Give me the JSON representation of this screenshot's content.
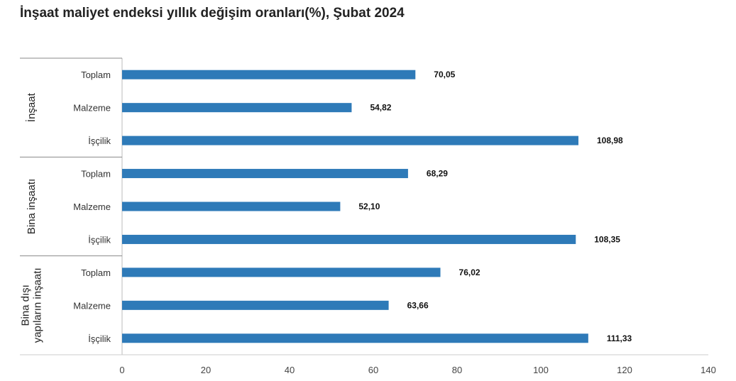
{
  "chart_data": {
    "type": "bar",
    "orientation": "horizontal",
    "title": "İnşaat maliyet endeksi yıllık değişim oranları(%), Şubat 2024",
    "xlim": [
      0,
      140
    ],
    "xticks": [
      "0",
      "20",
      "40",
      "60",
      "80",
      "100",
      "120",
      "140"
    ],
    "grid": false,
    "bar_color": "#2e7ab8",
    "groups": [
      {
        "name_lines": [
          "İnşaat"
        ],
        "categories": [
          "Toplam",
          "Malzeme",
          "İşçilik"
        ],
        "values": [
          70.05,
          54.82,
          108.98
        ],
        "labels": [
          "70,05",
          "54,82",
          "108,98"
        ]
      },
      {
        "name_lines": [
          "Bina inşaatı"
        ],
        "categories": [
          "Toplam",
          "Malzeme",
          "İşçilik"
        ],
        "values": [
          68.29,
          52.1,
          108.35
        ],
        "labels": [
          "68,29",
          "52,10",
          "108,35"
        ]
      },
      {
        "name_lines": [
          "Bina dışı",
          "yapıların inşaatı"
        ],
        "categories": [
          "Toplam",
          "Malzeme",
          "İşçilik"
        ],
        "values": [
          76.02,
          63.66,
          111.33
        ],
        "labels": [
          "76,02",
          "63,66",
          "111,33"
        ]
      }
    ]
  }
}
